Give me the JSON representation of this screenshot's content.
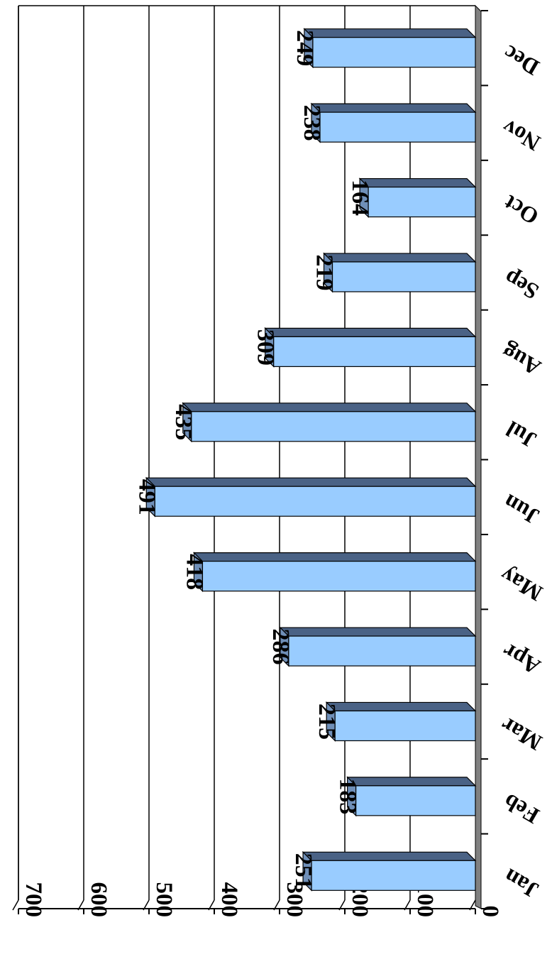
{
  "chart_data": {
    "type": "bar",
    "orientation": "horizontal",
    "rotated": "upside-down",
    "categories": [
      "Jan",
      "Feb",
      "Mar",
      "Apr",
      "May",
      "Jun",
      "Jul",
      "Aug",
      "Sep",
      "Oct",
      "Nov",
      "Dec"
    ],
    "values": [
      251,
      183,
      215,
      286,
      418,
      491,
      435,
      309,
      219,
      164,
      238,
      249
    ],
    "xlim": [
      0,
      700
    ],
    "ticks": [
      0,
      100,
      200,
      300,
      400,
      500,
      600,
      700
    ],
    "grid": true,
    "data_labels": true,
    "title": "",
    "xlabel": "",
    "ylabel": "",
    "colors": {
      "bar_face": "#99ccff",
      "bar_top": "#4a6285",
      "bar_side": "#6f8fb8",
      "floor": "#808080",
      "grid": "#000000"
    }
  }
}
